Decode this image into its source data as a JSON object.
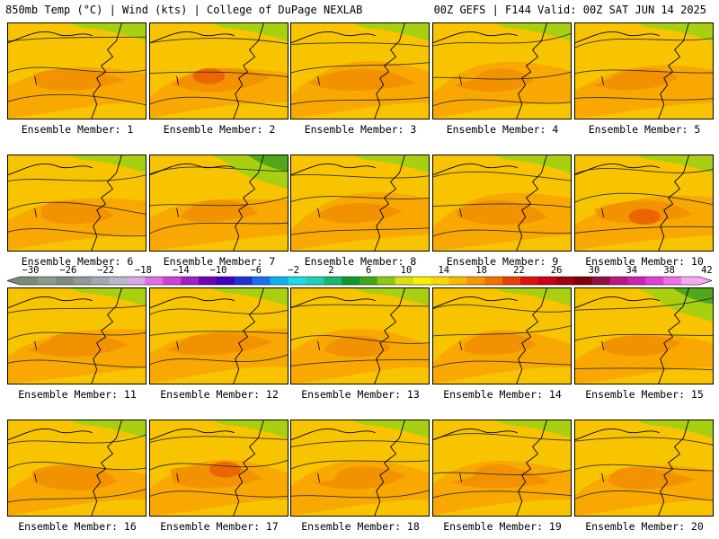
{
  "header": {
    "left": "850mb Temp (°C) | Wind (kts) | College of DuPage NEXLAB",
    "right": "00Z GEFS | F144 Valid: 00Z SAT JUN 14 2025"
  },
  "panels": [
    {
      "label": "Ensemble Member: 1",
      "member": 1
    },
    {
      "label": "Ensemble Member: 2",
      "member": 2
    },
    {
      "label": "Ensemble Member: 3",
      "member": 3
    },
    {
      "label": "Ensemble Member: 4",
      "member": 4
    },
    {
      "label": "Ensemble Member: 5",
      "member": 5
    },
    {
      "label": "Ensemble Member: 6",
      "member": 6
    },
    {
      "label": "Ensemble Member: 7",
      "member": 7
    },
    {
      "label": "Ensemble Member: 8",
      "member": 8
    },
    {
      "label": "Ensemble Member: 9",
      "member": 9
    },
    {
      "label": "Ensemble Member: 10",
      "member": 10
    },
    {
      "label": "Ensemble Member: 11",
      "member": 11
    },
    {
      "label": "Ensemble Member: 12",
      "member": 12
    },
    {
      "label": "Ensemble Member: 13",
      "member": 13
    },
    {
      "label": "Ensemble Member: 14",
      "member": 14
    },
    {
      "label": "Ensemble Member: 15",
      "member": 15
    },
    {
      "label": "Ensemble Member: 16",
      "member": 16
    },
    {
      "label": "Ensemble Member: 17",
      "member": 17
    },
    {
      "label": "Ensemble Member: 18",
      "member": 18
    },
    {
      "label": "Ensemble Member: 19",
      "member": 19
    },
    {
      "label": "Ensemble Member: 20",
      "member": 20
    }
  ],
  "colorbar": {
    "labels": [
      "−30",
      "−26",
      "−22",
      "−18",
      "−14",
      "−10",
      "−6",
      "−2",
      "2",
      "6",
      "10",
      "14",
      "18",
      "22",
      "26",
      "30",
      "34",
      "38",
      "42"
    ],
    "colors": [
      "#7a8a7a",
      "#8c9a8c",
      "#7e8a80",
      "#909898",
      "#a0a8b0",
      "#b8b8c8",
      "#d8a8e0",
      "#e070e0",
      "#d040d8",
      "#a020c8",
      "#7000b8",
      "#4000c0",
      "#2030d8",
      "#1870f0",
      "#10b0f0",
      "#20d8e8",
      "#20d0b0",
      "#18b870",
      "#109830",
      "#40a818",
      "#90c810",
      "#d8e010",
      "#f8f000",
      "#f8d800",
      "#f8b800",
      "#f89800",
      "#f07000",
      "#e84000",
      "#e01010",
      "#c80018",
      "#a00010",
      "#800008",
      "#901040",
      "#b81880",
      "#d020b0",
      "#e040d8",
      "#f070e8",
      "#f8a8f0"
    ],
    "temp_colors": {
      "cool": "#a8d010",
      "green": "#50a818",
      "warm": "#f8c400",
      "hot": "#f8a800",
      "hotter": "#f08c00",
      "hottest": "#e85a00"
    }
  }
}
